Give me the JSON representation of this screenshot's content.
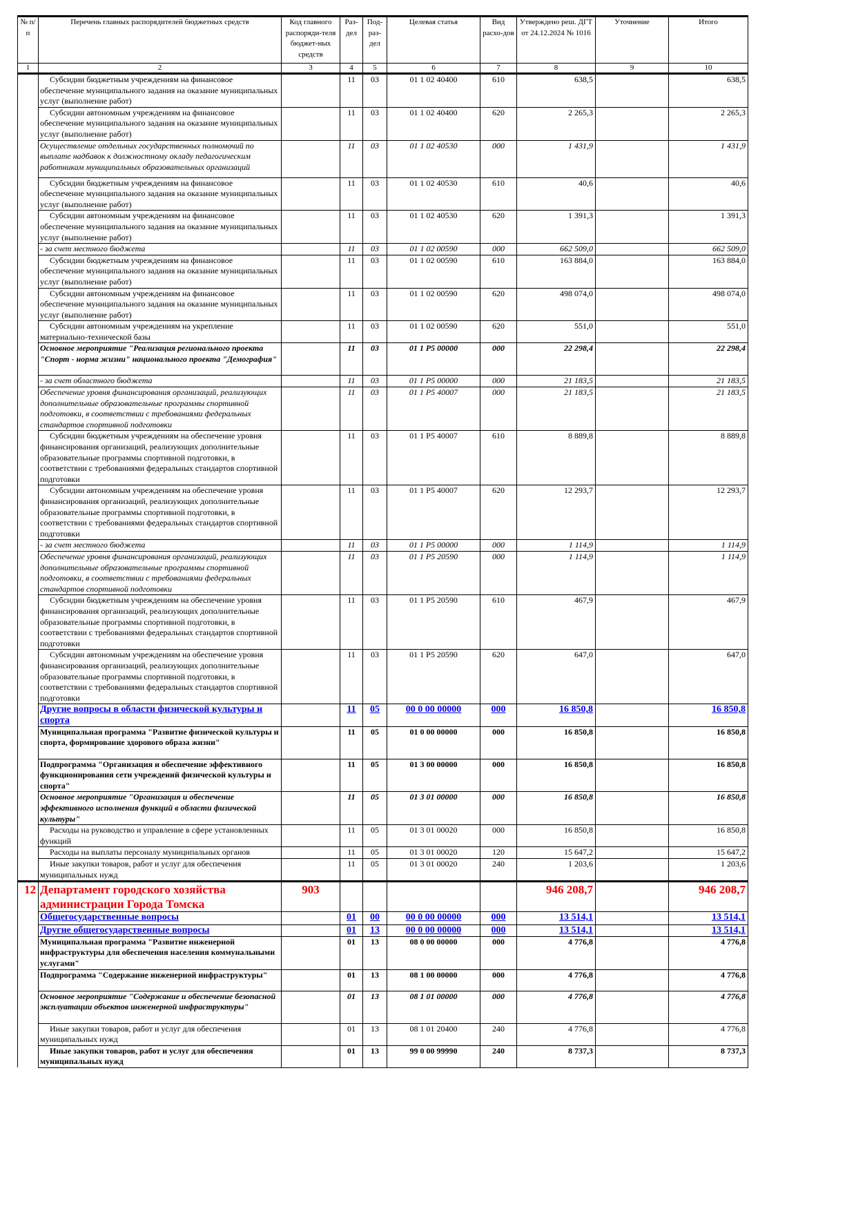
{
  "headers": [
    "№ п/п",
    "Перечень главных распорядителей бюджетных средств",
    "Код главного распоряди-теля бюджет-ных средств",
    "Раз-дел",
    "Под-раз-дел",
    "Целевая статья",
    "Вид расхо-дов",
    "Утверждено реш. ДГТ от 24.12.2024 № 1016",
    "Уточнение",
    "Итого"
  ],
  "column_numbers": [
    "1",
    "2",
    "3",
    "4",
    "5",
    "6",
    "7",
    "8",
    "9",
    "10"
  ],
  "rows": [
    {
      "style": "n",
      "indent": true,
      "name": "Субсидии бюджетным учреждениям на финансовое обеспечение муниципального задания на оказание муниципальных услуг (выполнение работ)",
      "razdel": "11",
      "podrazdel": "03",
      "tsel": "01 1 02 40400",
      "vid": "610",
      "utv": "638,5",
      "itogo": "638,5"
    },
    {
      "style": "n",
      "indent": true,
      "name": "Субсидии автономным учреждениям на финансовое обеспечение муниципального задания на оказание муниципальных услуг (выполнение работ)",
      "razdel": "11",
      "podrazdel": "03",
      "tsel": "01 1 02 40400",
      "vid": "620",
      "utv": "2 265,3",
      "itogo": "2 265,3"
    },
    {
      "style": "i",
      "name": "Осуществление отдельных государственных полномочий по выплате надбавок к должностному окладу педагогическим работникам муниципальных образовательных организаций",
      "razdel": "11",
      "podrazdel": "03",
      "tsel": "01 1 02 40530",
      "vid": "000",
      "utv": "1 431,9",
      "itogo": "1 431,9"
    },
    {
      "style": "n",
      "indent": true,
      "name": "Субсидии бюджетным учреждениям на финансовое обеспечение муниципального задания на оказание муниципальных услуг (выполнение работ)",
      "razdel": "11",
      "podrazdel": "03",
      "tsel": "01 1 02 40530",
      "vid": "610",
      "utv": "40,6",
      "itogo": "40,6"
    },
    {
      "style": "n",
      "indent": true,
      "name": "Субсидии автономным учреждениям на финансовое обеспечение муниципального задания на оказание муниципальных услуг (выполнение работ)",
      "razdel": "11",
      "podrazdel": "03",
      "tsel": "01 1 02 40530",
      "vid": "620",
      "utv": "1 391,3",
      "itogo": "1 391,3"
    },
    {
      "style": "i",
      "name": " - за счет местного бюджета",
      "razdel": "11",
      "podrazdel": "03",
      "tsel": "01 1 02 00590",
      "vid": "000",
      "utv": "662 509,0",
      "itogo": "662 509,0"
    },
    {
      "style": "n",
      "indent": true,
      "name": "Субсидии бюджетным учреждениям на финансовое обеспечение муниципального задания на оказание муниципальных услуг (выполнение работ)",
      "razdel": "11",
      "podrazdel": "03",
      "tsel": "01 1 02 00590",
      "vid": "610",
      "utv": "163 884,0",
      "itogo": "163 884,0"
    },
    {
      "style": "n",
      "indent": true,
      "name": "Субсидии автономным учреждениям на финансовое обеспечение муниципального задания на оказание муниципальных услуг (выполнение работ)",
      "razdel": "11",
      "podrazdel": "03",
      "tsel": "01 1 02 00590",
      "vid": "620",
      "utv": "498 074,0",
      "itogo": "498 074,0"
    },
    {
      "style": "n",
      "indent": true,
      "name": "Субсидии автономным учреждениям на укрепление материально-технической базы",
      "razdel": "11",
      "podrazdel": "03",
      "tsel": "01 1 02 00590",
      "vid": "620",
      "utv": "551,0",
      "itogo": "551,0"
    },
    {
      "style": "bi",
      "name": "Основное мероприятие \"Реализация регионального проекта \"Спорт - норма жизни\" национального проекта \"Демография\"",
      "razdel": "11",
      "podrazdel": "03",
      "tsel": "01 1 P5 00000",
      "vid": "000",
      "utv": "22 298,4",
      "itogo": "22 298,4"
    },
    {
      "style": "i",
      "name": " - за счет областного бюджета",
      "razdel": "11",
      "podrazdel": "03",
      "tsel": "01 1 P5 00000",
      "vid": "000",
      "utv": "21 183,5",
      "itogo": "21 183,5"
    },
    {
      "style": "i",
      "name": "Обеспечение уровня финансирования организаций, реализующих дополнительные образовательные программы спортивной подготовки, в соответствии с требованиями федеральных стандартов спортивной подготовки",
      "razdel": "11",
      "podrazdel": "03",
      "tsel": "01 1 P5 40007",
      "vid": "000",
      "utv": "21 183,5",
      "itogo": "21 183,5"
    },
    {
      "style": "n",
      "indent": true,
      "name": "Субсидии бюджетным учреждениям на обеспечение уровня финансирования организаций, реализующих дополнительные образовательные программы спортивной подготовки, в соответствии с требованиями федеральных стандартов спортивной подготовки",
      "razdel": "11",
      "podrazdel": "03",
      "tsel": "01 1 P5 40007",
      "vid": "610",
      "utv": "8 889,8",
      "itogo": "8 889,8"
    },
    {
      "style": "n",
      "indent": true,
      "name": "Субсидии автономным учреждениям на обеспечение уровня финансирования организаций, реализующих дополнительные образовательные программы спортивной подготовки, в соответствии с требованиями федеральных стандартов спортивной подготовки",
      "razdel": "11",
      "podrazdel": "03",
      "tsel": "01 1 P5 40007",
      "vid": "620",
      "utv": "12 293,7",
      "itogo": "12 293,7"
    },
    {
      "style": "i",
      "name": " - за счет местного бюджета",
      "razdel": "11",
      "podrazdel": "03",
      "tsel": "01 1 P5 00000",
      "vid": "000",
      "utv": "1 114,9",
      "itogo": "1 114,9"
    },
    {
      "style": "i",
      "name": "Обеспечение уровня финансирования организаций, реализующих дополнительные образовательные программы спортивной подготовки, в соответствии с требованиями федеральных стандартов спортивной подготовки",
      "razdel": "11",
      "podrazdel": "03",
      "tsel": "01 1 P5 20590",
      "vid": "000",
      "utv": "1 114,9",
      "itogo": "1 114,9"
    },
    {
      "style": "n",
      "indent": true,
      "name": "Субсидии бюджетным учреждениям на обеспечение уровня финансирования организаций, реализующих дополнительные образовательные программы спортивной подготовки, в соответствии с требованиями федеральных стандартов спортивной подготовки",
      "razdel": "11",
      "podrazdel": "03",
      "tsel": "01 1 P5 20590",
      "vid": "610",
      "utv": "467,9",
      "itogo": "467,9"
    },
    {
      "style": "n",
      "indent": true,
      "name": "Субсидии автономным учреждениям на обеспечение уровня финансирования организаций, реализующих дополнительные образовательные программы спортивной подготовки, в соответствии с требованиями федеральных стандартов спортивной подготовки",
      "razdel": "11",
      "podrazdel": "03",
      "tsel": "01 1 P5 20590",
      "vid": "620",
      "utv": "647,0",
      "itogo": "647,0"
    },
    {
      "style": "blue",
      "name": "Другие вопросы в области физической культуры и спорта",
      "razdel": "11",
      "podrazdel": "05",
      "tsel": "00 0 00 00000",
      "vid": "000",
      "utv": "16 850,8",
      "itogo": "16 850,8"
    },
    {
      "style": "b",
      "name": "Муниципальная программа \"Развитие физической культуры и спорта, формирование здорового образа жизни\"",
      "razdel": "11",
      "podrazdel": "05",
      "tsel": "01 0 00 00000",
      "vid": "000",
      "utv": "16 850,8",
      "itogo": "16 850,8"
    },
    {
      "style": "b",
      "name": "Подпрограмма \"Организация и обеспечение эффективного функционирования сети учреждений физической культуры и спорта\"",
      "razdel": "11",
      "podrazdel": "05",
      "tsel": "01 3 00 00000",
      "vid": "000",
      "utv": "16 850,8",
      "itogo": "16 850,8"
    },
    {
      "style": "bi",
      "name": "Основное мероприятие \"Организация и обеспечение эффективного исполнения функций в области физической культуры\"",
      "razdel": "11",
      "podrazdel": "05",
      "tsel": "01 3 01 00000",
      "vid": "000",
      "utv": "16 850,8",
      "itogo": "16 850,8"
    },
    {
      "style": "n",
      "indent": true,
      "name": "Расходы на руководство и управление в сфере установленных функций",
      "razdel": "11",
      "podrazdel": "05",
      "tsel": "01 3 01 00020",
      "vid": "000",
      "utv": "16 850,8",
      "itogo": "16 850,8"
    },
    {
      "style": "n",
      "indent": true,
      "name": "Расходы на выплаты персоналу муниципальных органов",
      "razdel": "11",
      "podrazdel": "05",
      "tsel": "01 3 01 00020",
      "vid": "120",
      "utv": "15 647,2",
      "itogo": "15 647,2"
    },
    {
      "style": "n",
      "indent": true,
      "name": "Иные закупки товаров, работ и услуг для обеспечения муниципальных нужд",
      "razdel": "11",
      "podrazdel": "05",
      "tsel": "01 3 01 00020",
      "vid": "240",
      "utv": "1 203,6",
      "itogo": "1 203,6"
    },
    {
      "style": "red",
      "num": "12",
      "name": "Департамент городского хозяйства администрации Города Томска",
      "code": "903",
      "razdel": "",
      "podrazdel": "",
      "tsel": "",
      "vid": "",
      "utv": "946 208,7",
      "itogo": "946 208,7"
    },
    {
      "style": "blue",
      "name": "Общегосударственные вопросы",
      "razdel": "01",
      "podrazdel": "00",
      "tsel": "00 0 00 00000",
      "vid": "000",
      "utv": "13 514,1",
      "itogo": "13 514,1"
    },
    {
      "style": "blue",
      "name": "Другие общегосударственные вопросы",
      "razdel": "01",
      "podrazdel": "13",
      "tsel": "00 0 00 00000",
      "vid": "000",
      "utv": "13 514,1",
      "itogo": "13 514,1"
    },
    {
      "style": "b",
      "name": "Муниципальная программа \"Развитие инженерной инфраструктуры для обеспечения населения коммунальными услугами\"",
      "razdel": "01",
      "podrazdel": "13",
      "tsel": "08 0 00 00000",
      "vid": "000",
      "utv": "4 776,8",
      "itogo": "4 776,8"
    },
    {
      "style": "b",
      "name": "Подпрограмма \"Содержание инженерной инфраструктуры\"",
      "razdel": "01",
      "podrazdel": "13",
      "tsel": "08 1 00 00000",
      "vid": "000",
      "utv": "4 776,8",
      "itogo": "4 776,8"
    },
    {
      "style": "bi",
      "name": "Основное мероприятие \"Содержание и обеспечение безопасной эксплуатации объектов инженерной инфраструктуры\"",
      "razdel": "01",
      "podrazdel": "13",
      "tsel": "08 1 01 00000",
      "vid": "000",
      "utv": "4 776,8",
      "itogo": "4 776,8"
    },
    {
      "style": "n",
      "indent": true,
      "name": "Иные закупки товаров, работ и услуг для обеспечения муниципальных нужд",
      "razdel": "01",
      "podrazdel": "13",
      "tsel": "08 1 01 20400",
      "vid": "240",
      "utv": "4 776,8",
      "itogo": "4 776,8"
    },
    {
      "style": "b",
      "indent": true,
      "name": "Иные закупки товаров, работ и услуг для обеспечения муниципальных нужд",
      "razdel": "01",
      "podrazdel": "13",
      "tsel": "99 0 00 99990",
      "vid": "240",
      "utv": "8 737,3",
      "itogo": "8 737,3"
    }
  ]
}
